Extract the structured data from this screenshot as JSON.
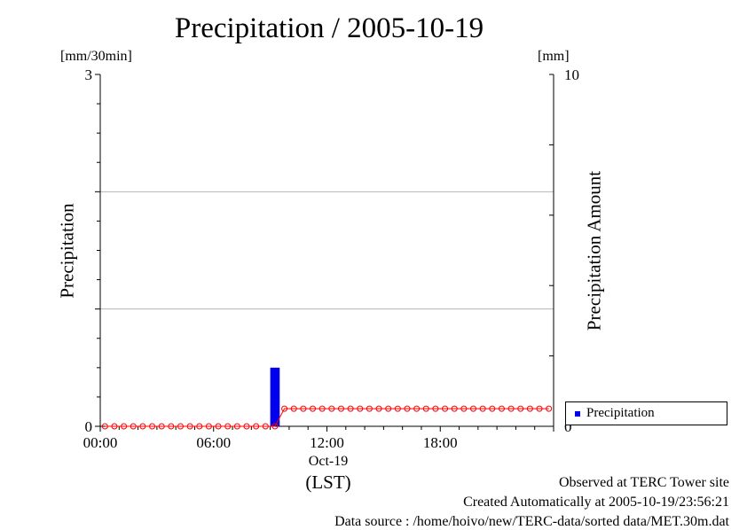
{
  "chart_data": {
    "type": "bar",
    "title": "Precipitation / 2005-10-19",
    "ylabel": "Precipitation",
    "ylabel_unit": "[mm/30min]",
    "y2label": "Precipitation Amount",
    "y2label_unit": "[mm]",
    "xlabel": "(LST)",
    "x_date_label": "Oct-19",
    "x_tick_labels": [
      "00:00",
      "06:00",
      "12:00",
      "18:00"
    ],
    "ylim": [
      0,
      3
    ],
    "y_tick_labels": [
      "0",
      "3"
    ],
    "y2lim": [
      0,
      10
    ],
    "y2_tick_labels": [
      "0",
      "10"
    ],
    "grid": true,
    "legend_placement": "bottom-right outside",
    "legend": [
      "Precipitation"
    ],
    "x_hours": [
      0,
      0.5,
      1,
      1.5,
      2,
      2.5,
      3,
      3.5,
      4,
      4.5,
      5,
      5.5,
      6,
      6.5,
      7,
      7.5,
      8,
      8.5,
      9,
      9.5,
      10,
      10.5,
      11,
      11.5,
      12,
      12.5,
      13,
      13.5,
      14,
      14.5,
      15,
      15.5,
      16,
      16.5,
      17,
      17.5,
      18,
      18.5,
      19,
      19.5,
      20,
      20.5,
      21,
      21.5,
      22,
      22.5,
      23,
      23.5
    ],
    "series": [
      {
        "name": "Precipitation",
        "kind": "bar",
        "axis": "left",
        "color": "#0000ee",
        "values": [
          0,
          0,
          0,
          0,
          0,
          0,
          0,
          0,
          0,
          0,
          0,
          0,
          0,
          0,
          0,
          0,
          0,
          0,
          0.5,
          0,
          0,
          0,
          0,
          0,
          0,
          0,
          0,
          0,
          0,
          0,
          0,
          0,
          0,
          0,
          0,
          0,
          0,
          0,
          0,
          0,
          0,
          0,
          0,
          0,
          0,
          0,
          0,
          0
        ]
      },
      {
        "kind": "line-markers",
        "axis": "right",
        "color": "#ff0000",
        "values": [
          0,
          0,
          0,
          0,
          0,
          0,
          0,
          0,
          0,
          0,
          0,
          0,
          0,
          0,
          0,
          0,
          0,
          0,
          0,
          0.5,
          0.5,
          0.5,
          0.5,
          0.5,
          0.5,
          0.5,
          0.5,
          0.5,
          0.5,
          0.5,
          0.5,
          0.5,
          0.5,
          0.5,
          0.5,
          0.5,
          0.5,
          0.5,
          0.5,
          0.5,
          0.5,
          0.5,
          0.5,
          0.5,
          0.5,
          0.5,
          0.5,
          0.5
        ]
      }
    ]
  },
  "footer": {
    "line1": "Observed at TERC Tower site",
    "line2": "Created Automatically at 2005-10-19/23:56:21",
    "line3": "Data source : /home/hoivo/new/TERC-data/sorted  data/MET.30m.dat"
  }
}
